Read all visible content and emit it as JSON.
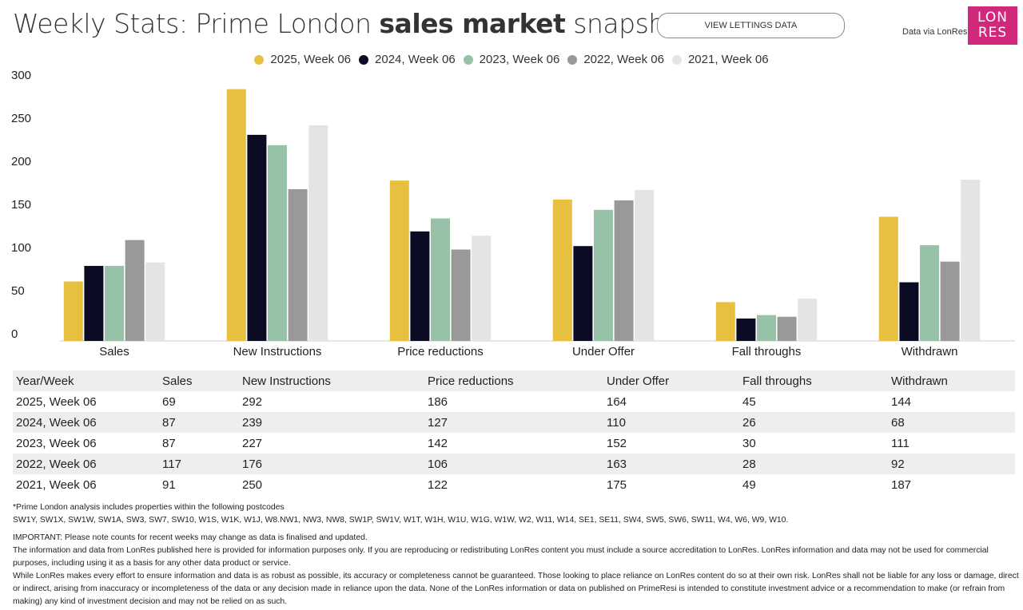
{
  "header": {
    "title_pre": "Weekly Stats: Prime London ",
    "title_bold": "sales market",
    "title_post": " snapshot",
    "button": "VIEW LETTINGS DATA",
    "via": "Data via LonRes",
    "logo_line1": "LON",
    "logo_line2": "RES",
    "logo_color": "#D0287A"
  },
  "chart_data": {
    "type": "bar",
    "categories": [
      "Sales",
      "New Instructions",
      "Price reductions",
      "Under Offer",
      "Fall throughs",
      "Withdrawn"
    ],
    "ylim": [
      0,
      300
    ],
    "yticks": [
      0,
      50,
      100,
      150,
      200,
      250,
      300
    ],
    "legend_position": "top",
    "grid": false,
    "series": [
      {
        "name": "2025, Week 06",
        "color": "#E8C040",
        "values": [
          69,
          292,
          186,
          164,
          45,
          144
        ]
      },
      {
        "name": "2024, Week 06",
        "color": "#0B0B24",
        "values": [
          87,
          239,
          127,
          110,
          26,
          68
        ]
      },
      {
        "name": "2023, Week 06",
        "color": "#97C2A8",
        "values": [
          87,
          227,
          142,
          152,
          30,
          111
        ]
      },
      {
        "name": "2022, Week 06",
        "color": "#999999",
        "values": [
          117,
          176,
          106,
          163,
          28,
          92
        ]
      },
      {
        "name": "2021, Week 06",
        "color": "#E4E4E4",
        "values": [
          91,
          250,
          122,
          175,
          49,
          187
        ]
      }
    ]
  },
  "table": {
    "headers": [
      "Year/Week",
      "Sales",
      "New Instructions",
      "Price reductions",
      "Under Offer",
      "Fall throughs",
      "Withdrawn"
    ]
  },
  "notes": {
    "postcodes_title": "*Prime London analysis includes properties within the following postcodes",
    "postcodes": "SW1Y, SW1X, SW1W, SW1A, SW3, SW7, SW10, W1S, W1K, W1J, W8.NW1, NW3, NW8, SW1P, SW1V, W1T, W1H, W1U, W1G, W1W, W2, W11, W14, SE1, SE11, SW4, SW5, SW6, SW11, W4, W6, W9, W10.",
    "important": "IMPORTANT: Please note counts for recent weeks may change as data is finalised and updated.",
    "info": "The information and data from LonRes published here is provided for information purposes only. If you are reproducing or redistributing LonRes content you must include a source accreditation to LonRes. LonRes information and data may not be used for commercial purposes, including using it as a basis for any other data product or service.",
    "disclaimer": "While LonRes makes every effort to ensure information and data is as robust as possible, its accuracy or completeness cannot be guaranteed. Those looking to place reliance on LonRes content do so at their own risk. LonRes shall not be liable for any loss or damage, direct or indirect, arising from inaccuracy or incompleteness of the data or any decision made in reliance upon the data. None of the LonRes information or data on published on PrimeResi is intended to constitute investment advice or a recommendation to make (or refrain from making) any kind of investment decision and may not be relied on as such."
  }
}
